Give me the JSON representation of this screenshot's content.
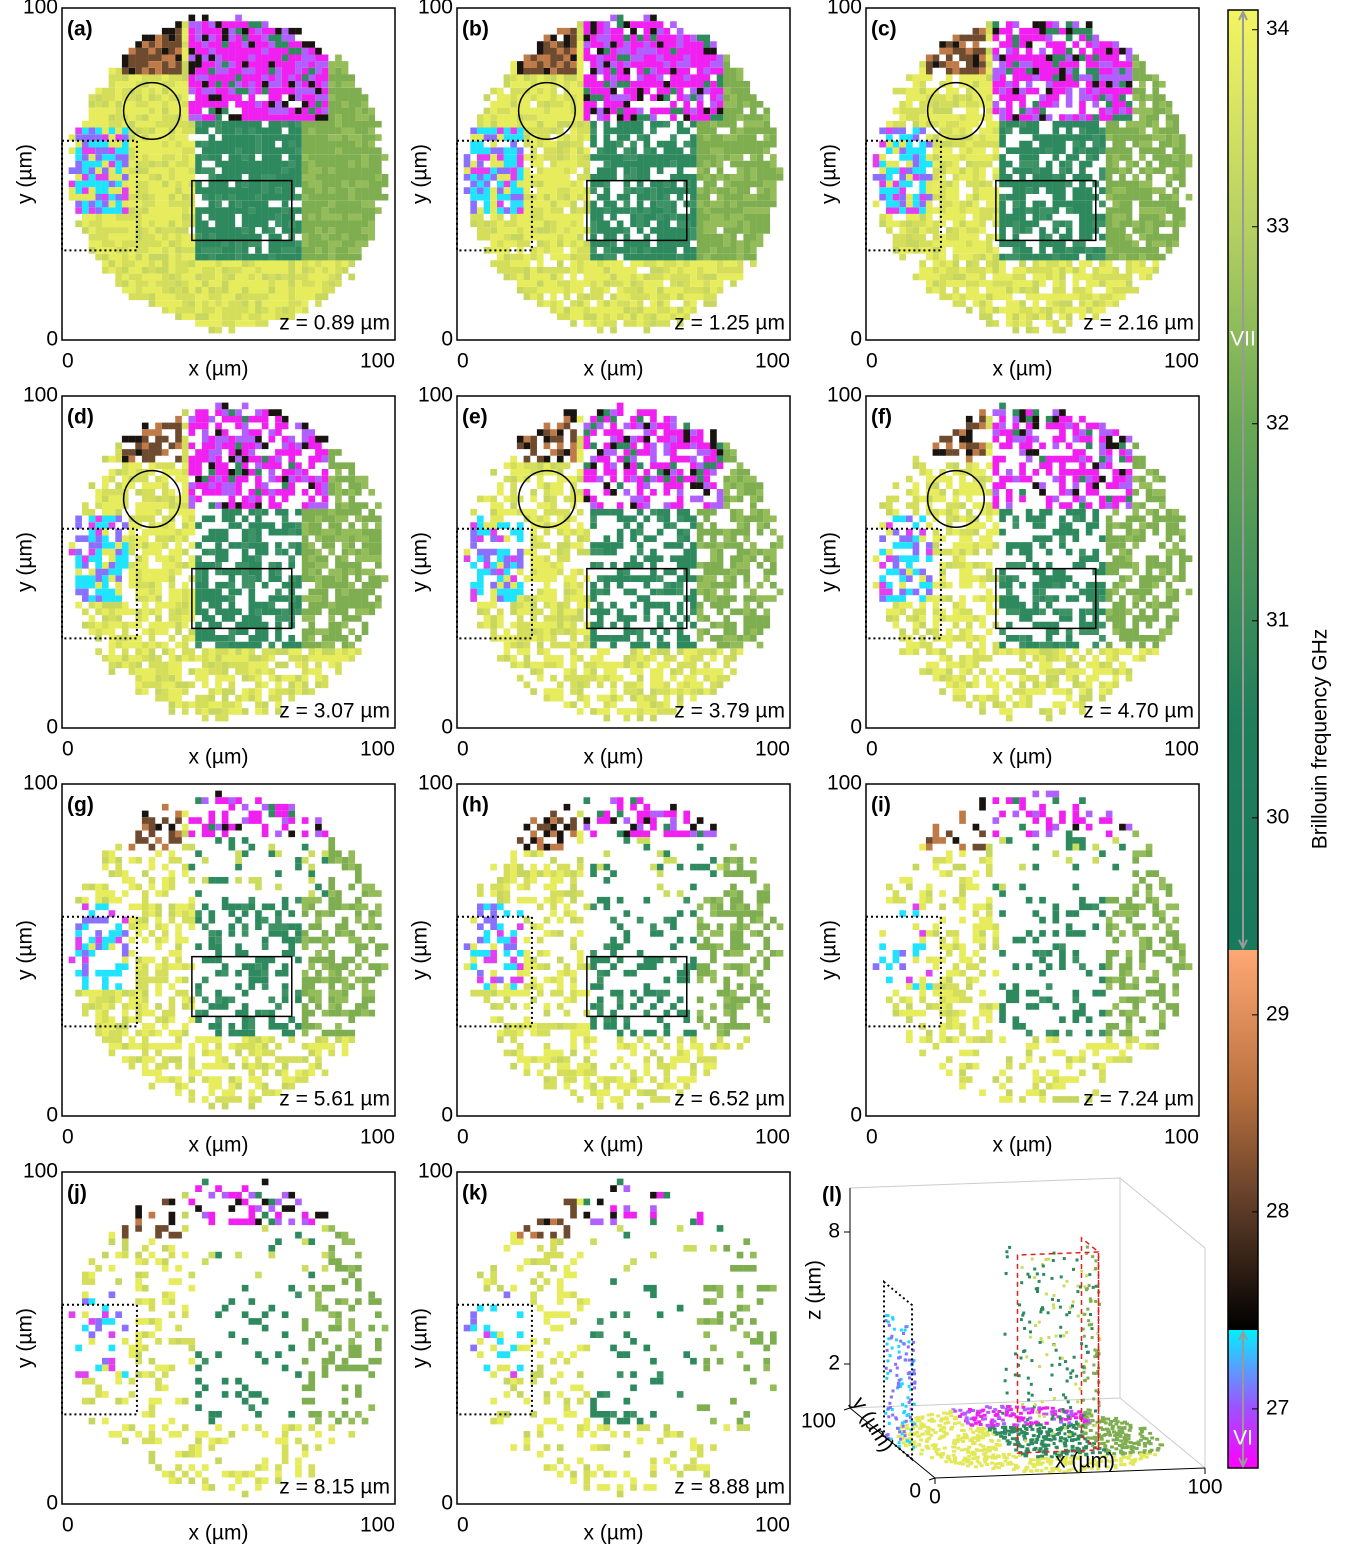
{
  "chart_data": [
    {
      "type": "map",
      "panel_label": "(a)",
      "annotation": "z = 0.89 µm",
      "x_label": "x (µm)",
      "y_label": "y (µm)",
      "xlim": [
        0,
        100
      ],
      "ylim": [
        0,
        100
      ],
      "xticks": [
        0,
        100
      ],
      "yticks": [
        0,
        100
      ]
    },
    {
      "type": "map",
      "panel_label": "(b)",
      "annotation": "z = 1.25 µm",
      "x_label": "x (µm)",
      "y_label": "y (µm)",
      "xlim": [
        0,
        100
      ],
      "ylim": [
        0,
        100
      ],
      "xticks": [
        0,
        100
      ],
      "yticks": [
        0,
        100
      ]
    },
    {
      "type": "map",
      "panel_label": "(c)",
      "annotation": "z = 2.16 µm",
      "x_label": "x (µm)",
      "y_label": "y (µm)",
      "xlim": [
        0,
        100
      ],
      "ylim": [
        0,
        100
      ],
      "xticks": [
        0,
        100
      ],
      "yticks": [
        0,
        100
      ]
    },
    {
      "type": "map",
      "panel_label": "(d)",
      "annotation": "z = 3.07 µm",
      "x_label": "x (µm)",
      "y_label": "y (µm)",
      "xlim": [
        0,
        100
      ],
      "ylim": [
        0,
        100
      ],
      "xticks": [
        0,
        100
      ],
      "yticks": [
        0,
        100
      ]
    },
    {
      "type": "map",
      "panel_label": "(e)",
      "annotation": "z = 3.79 µm",
      "x_label": "x (µm)",
      "y_label": "y (µm)",
      "xlim": [
        0,
        100
      ],
      "ylim": [
        0,
        100
      ],
      "xticks": [
        0,
        100
      ],
      "yticks": [
        0,
        100
      ]
    },
    {
      "type": "map",
      "panel_label": "(f)",
      "annotation": "z = 4.70 µm",
      "x_label": "x (µm)",
      "y_label": "y (µm)",
      "xlim": [
        0,
        100
      ],
      "ylim": [
        0,
        100
      ],
      "xticks": [
        0,
        100
      ],
      "yticks": [
        0,
        100
      ]
    },
    {
      "type": "map",
      "panel_label": "(g)",
      "annotation": "z = 5.61 µm",
      "x_label": "x (µm)",
      "y_label": "y (µm)",
      "xlim": [
        0,
        100
      ],
      "ylim": [
        0,
        100
      ],
      "xticks": [
        0,
        100
      ],
      "yticks": [
        0,
        100
      ]
    },
    {
      "type": "map",
      "panel_label": "(h)",
      "annotation": "z = 6.52 µm",
      "x_label": "x (µm)",
      "y_label": "y (µm)",
      "xlim": [
        0,
        100
      ],
      "ylim": [
        0,
        100
      ],
      "xticks": [
        0,
        100
      ],
      "yticks": [
        0,
        100
      ]
    },
    {
      "type": "map",
      "panel_label": "(i)",
      "annotation": "z = 7.24 µm",
      "x_label": "x (µm)",
      "y_label": "y (µm)",
      "xlim": [
        0,
        100
      ],
      "ylim": [
        0,
        100
      ],
      "xticks": [
        0,
        100
      ],
      "yticks": [
        0,
        100
      ]
    },
    {
      "type": "map",
      "panel_label": "(j)",
      "annotation": "z = 8.15 µm",
      "x_label": "x (µm)",
      "y_label": "y (µm)",
      "xlim": [
        0,
        100
      ],
      "ylim": [
        0,
        100
      ],
      "xticks": [
        0,
        100
      ],
      "yticks": [
        0,
        100
      ]
    },
    {
      "type": "map",
      "panel_label": "(k)",
      "annotation": "z = 8.88 µm",
      "x_label": "x (µm)",
      "y_label": "y (µm)",
      "xlim": [
        0,
        100
      ],
      "ylim": [
        0,
        100
      ],
      "xticks": [
        0,
        100
      ],
      "yticks": [
        0,
        100
      ]
    },
    {
      "type": "map3d",
      "panel_label": "(l)",
      "x_label": "x (µm)",
      "y_label": "y (µm)",
      "z_label": "z (µm)",
      "xlim": [
        0,
        100
      ],
      "ylim": [
        0,
        100
      ],
      "zlim": [
        0,
        10
      ],
      "xticks": [
        0,
        100
      ],
      "yticks": [
        0,
        100
      ],
      "zticks": [
        2,
        8
      ]
    },
    {
      "type": "colorbar",
      "label": "Brillouin frequency GHz",
      "ylim": [
        26.7,
        34.1
      ],
      "yticks": [
        27,
        28,
        29,
        30,
        31,
        32,
        33,
        34
      ],
      "stops": [
        {
          "value": 26.7,
          "color": "#ff00ff"
        },
        {
          "value": 27.0,
          "color": "#a050ff"
        },
        {
          "value": 27.2,
          "color": "#5a9cff"
        },
        {
          "value": 27.4,
          "color": "#00f0ff"
        },
        {
          "value": 27.4,
          "color": "#000000"
        },
        {
          "value": 28.0,
          "color": "#5a3a26"
        },
        {
          "value": 28.6,
          "color": "#b8703e"
        },
        {
          "value": 29.33,
          "color": "#ffa874"
        },
        {
          "value": 29.33,
          "color": "#177a5c"
        },
        {
          "value": 30.5,
          "color": "#1f7e5c"
        },
        {
          "value": 32.0,
          "color": "#6aa855"
        },
        {
          "value": 33.0,
          "color": "#b6d062"
        },
        {
          "value": 34.1,
          "color": "#f3f562"
        }
      ],
      "phases": [
        {
          "name": "VII",
          "range": [
            29.33,
            34.1
          ]
        },
        {
          "name": "VI",
          "range": [
            26.7,
            27.4
          ]
        }
      ]
    }
  ]
}
